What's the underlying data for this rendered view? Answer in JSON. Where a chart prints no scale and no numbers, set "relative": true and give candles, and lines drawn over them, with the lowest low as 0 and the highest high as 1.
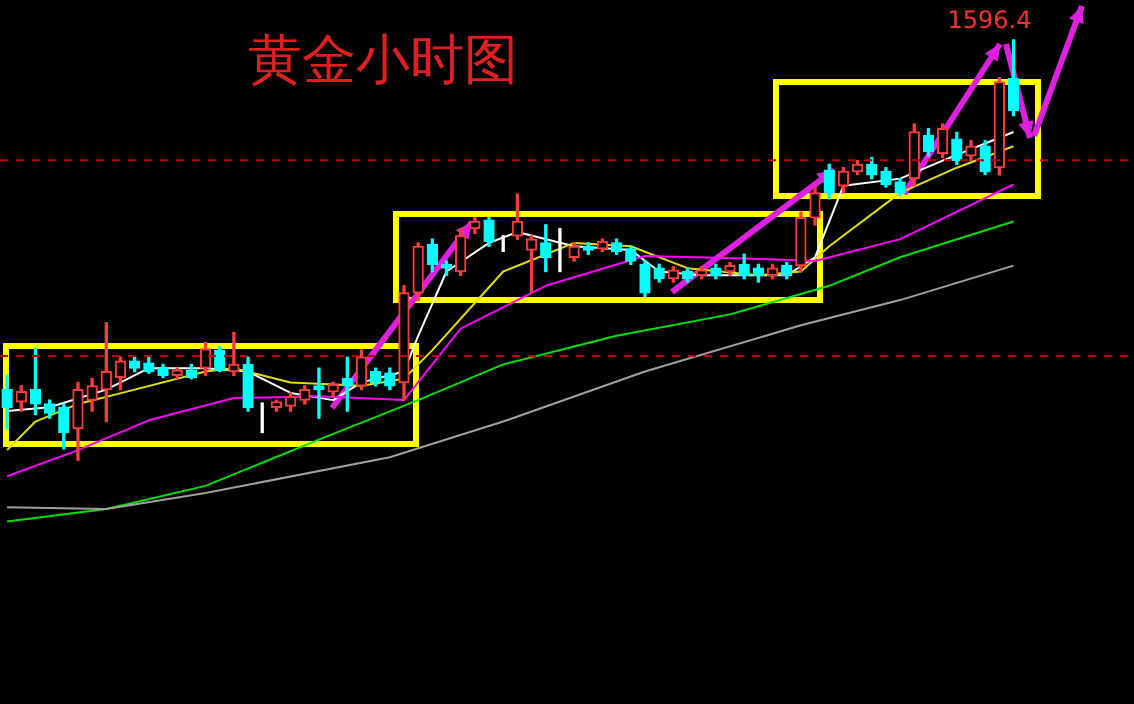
{
  "chart_data": {
    "type": "candlestick",
    "title": "黄金小时图",
    "relative": true,
    "categories": [
      null,
      null,
      null,
      null,
      null,
      null,
      null,
      null,
      null,
      null,
      null,
      null,
      null,
      null,
      null,
      null,
      null,
      null,
      null,
      null,
      null,
      null,
      null,
      null,
      null,
      null,
      null,
      null,
      null,
      null,
      null,
      null,
      null,
      null,
      null,
      null,
      null,
      null,
      null,
      null,
      null,
      null,
      null,
      null,
      null,
      null,
      null,
      null,
      null,
      null,
      null,
      null,
      null,
      null,
      null,
      null,
      null,
      null,
      null,
      null,
      null,
      null,
      null,
      null,
      null,
      null,
      null,
      null,
      null,
      null,
      null,
      null,
      null,
      null,
      null,
      null,
      null,
      null,
      null,
      null
    ],
    "ohlc": [
      [
        0.168,
        0.202,
        0.075,
        0.126
      ],
      [
        0.139,
        0.177,
        0.117,
        0.163
      ],
      [
        0.168,
        0.265,
        0.109,
        0.134
      ],
      [
        0.134,
        0.143,
        0.1,
        0.112
      ],
      [
        0.126,
        0.134,
        0.027,
        0.066
      ],
      [
        0.075,
        0.185,
        0,
        0.168
      ],
      [
        0.143,
        0.194,
        0.117,
        0.177
      ],
      [
        0.168,
        0.327,
        0.092,
        0.211
      ],
      [
        0.197,
        0.245,
        0.168,
        0.236
      ],
      [
        0.236,
        0.245,
        0.211,
        0.219
      ],
      [
        0.231,
        0.245,
        0.207,
        0.211
      ],
      [
        0.219,
        0.228,
        0.197,
        0.202
      ],
      [
        0.202,
        0.219,
        0.194,
        0.214
      ],
      [
        0.214,
        0.228,
        0.194,
        0.197
      ],
      [
        0.219,
        0.28,
        0.202,
        0.265
      ],
      [
        0.262,
        0.27,
        0.211,
        0.214
      ],
      [
        0.211,
        0.304,
        0.202,
        0.228
      ],
      [
        0.228,
        0.245,
        0.117,
        0.126
      ],
      [
        0.134,
        0.136,
        0.066,
        0.134
      ],
      [
        0.126,
        0.143,
        0.117,
        0.139
      ],
      [
        0.129,
        0.16,
        0.117,
        0.151
      ],
      [
        0.143,
        0.177,
        0.134,
        0.168
      ],
      [
        0.177,
        0.219,
        0.1,
        0.168
      ],
      [
        0.163,
        0.185,
        0.151,
        0.18
      ],
      [
        0.194,
        0.245,
        0.117,
        0.177
      ],
      [
        0.177,
        0.262,
        0.168,
        0.245
      ],
      [
        0.211,
        0.219,
        0.177,
        0.185
      ],
      [
        0.207,
        0.219,
        0.168,
        0.177
      ],
      [
        0.185,
        0.415,
        0.143,
        0.398
      ],
      [
        0.398,
        0.517,
        0.38,
        0.509
      ],
      [
        0.513,
        0.526,
        0.449,
        0.466
      ],
      [
        0.466,
        0.474,
        0.44,
        0.457
      ],
      [
        0.449,
        0.551,
        0.44,
        0.534
      ],
      [
        0.551,
        0.577,
        0.54,
        0.568
      ],
      [
        0.571,
        0.577,
        0.509,
        0.52
      ],
      [
        0.517,
        0.534,
        0.497,
        0.517
      ],
      [
        0.534,
        0.633,
        0.526,
        0.568
      ],
      [
        0.5,
        0.534,
        0.398,
        0.526
      ],
      [
        0.517,
        0.56,
        0.449,
        0.483
      ],
      [
        0.5,
        0.551,
        0.449,
        0.5
      ],
      [
        0.483,
        0.517,
        0.474,
        0.509
      ],
      [
        0.509,
        0.517,
        0.49,
        0.5
      ],
      [
        0.503,
        0.526,
        0.497,
        0.52
      ],
      [
        0.517,
        0.526,
        0.49,
        0.497
      ],
      [
        0.503,
        0.509,
        0.466,
        0.474
      ],
      [
        0.466,
        0.474,
        0.39,
        0.398
      ],
      [
        0.457,
        0.466,
        0.424,
        0.432
      ],
      [
        0.432,
        0.46,
        0.424,
        0.452
      ],
      [
        0.449,
        0.457,
        0.424,
        0.432
      ],
      [
        0.44,
        0.46,
        0.432,
        0.452
      ],
      [
        0.457,
        0.466,
        0.432,
        0.44
      ],
      [
        0.449,
        0.47,
        0.44,
        0.463
      ],
      [
        0.466,
        0.49,
        0.432,
        0.44
      ],
      [
        0.457,
        0.466,
        0.424,
        0.44
      ],
      [
        0.44,
        0.466,
        0.432,
        0.457
      ],
      [
        0.463,
        0.47,
        0.432,
        0.44
      ],
      [
        0.463,
        0.59,
        0.449,
        0.577
      ],
      [
        0.577,
        0.65,
        0.56,
        0.636
      ],
      [
        0.69,
        0.704,
        0.622,
        0.636
      ],
      [
        0.653,
        0.696,
        0.636,
        0.687
      ],
      [
        0.687,
        0.713,
        0.68,
        0.704
      ],
      [
        0.704,
        0.72,
        0.67,
        0.679
      ],
      [
        0.687,
        0.696,
        0.65,
        0.656
      ],
      [
        0.662,
        0.67,
        0.63,
        0.636
      ],
      [
        0.67,
        0.8,
        0.653,
        0.781
      ],
      [
        0.772,
        0.789,
        0.724,
        0.735
      ],
      [
        0.73,
        0.8,
        0.72,
        0.789
      ],
      [
        0.764,
        0.78,
        0.704,
        0.713
      ],
      [
        0.724,
        0.76,
        0.713,
        0.747
      ],
      [
        0.747,
        0.76,
        0.68,
        0.687
      ],
      [
        0.696,
        0.91,
        0.679,
        0.9
      ],
      [
        0.908,
        1,
        0.82,
        0.832
      ],
      null,
      null,
      null,
      null,
      null,
      null,
      null,
      null
    ],
    "colors": [
      "#00ffff",
      "#ff3c3c",
      "#00ffff",
      "#00ffff",
      "#00ffff",
      "#ff3c3c",
      "#ff3c3c",
      "#ff3c3c",
      "#ff3c3c",
      "#00ffff",
      "#00ffff",
      "#00ffff",
      "#ff3c3c",
      "#00ffff",
      "#ff3c3c",
      "#00ffff",
      "#ff3c3c",
      "#00ffff",
      "#ffffff",
      "#ff3c3c",
      "#ff3c3c",
      "#ff3c3c",
      "#00ffff",
      "#ff3c3c",
      "#00ffff",
      "#ff3c3c",
      "#00ffff",
      "#00ffff",
      "#ff3c3c",
      "#ff3c3c",
      "#00ffff",
      "#00ffff",
      "#ff3c3c",
      "#ff3c3c",
      "#00ffff",
      "#ffffff",
      "#ff3c3c",
      "#ff3c3c",
      "#00ffff",
      "#ffffff",
      "#ff3c3c",
      "#00ffff",
      "#ff3c3c",
      "#00ffff",
      "#00ffff",
      "#00ffff",
      "#00ffff",
      "#ff3c3c",
      "#00ffff",
      "#ff3c3c",
      "#00ffff",
      "#ff3c3c",
      "#00ffff",
      "#00ffff",
      "#ff3c3c",
      "#00ffff",
      "#ff3c3c",
      "#ff3c3c",
      "#00ffff",
      "#ff3c3c",
      "#ff3c3c",
      "#00ffff",
      "#00ffff",
      "#00ffff",
      "#ff3c3c",
      "#00ffff",
      "#ff3c3c",
      "#00ffff",
      "#ff3c3c",
      "#00ffff",
      "#ff3c3c",
      "#00ffff",
      null,
      null,
      null,
      null,
      null,
      null,
      null,
      null
    ],
    "series": [
      {
        "type": "line",
        "color": "#a0a0a0",
        "values": [
          -0.112,
          null,
          null,
          null,
          null,
          null,
          null,
          -0.116,
          null,
          null,
          null,
          null,
          null,
          null,
          -0.078,
          null,
          null,
          null,
          null,
          null,
          null,
          null,
          null,
          null,
          null,
          null,
          null,
          0.007,
          null,
          null,
          null,
          null,
          null,
          null,
          null,
          0.092,
          null,
          null,
          null,
          null,
          null,
          null,
          null,
          null,
          null,
          0.211,
          null,
          null,
          null,
          null,
          null,
          null,
          null,
          null,
          null,
          null,
          0.321,
          null,
          null,
          null,
          null,
          null,
          null,
          0.381,
          null,
          null,
          null,
          null,
          null,
          null,
          null,
          0.463,
          null,
          null,
          null,
          null,
          null,
          null,
          null,
          null
        ]
      },
      {
        "type": "line",
        "color": "#00e000",
        "values": [
          -0.146,
          null,
          null,
          null,
          null,
          null,
          null,
          -0.116,
          null,
          null,
          null,
          null,
          null,
          null,
          -0.061,
          null,
          null,
          null,
          null,
          null,
          null,
          null,
          0.049,
          null,
          null,
          null,
          null,
          null,
          null,
          0.143,
          null,
          null,
          null,
          null,
          null,
          0.228,
          null,
          null,
          null,
          null,
          null,
          null,
          null,
          0.296,
          null,
          null,
          null,
          null,
          null,
          null,
          null,
          0.347,
          null,
          null,
          null,
          null,
          null,
          null,
          0.415,
          null,
          null,
          null,
          null,
          0.483,
          null,
          null,
          null,
          null,
          null,
          null,
          null,
          0.568,
          null,
          null,
          null,
          null,
          null,
          null,
          null,
          null
        ]
      },
      {
        "type": "line",
        "color": "#ff00ff",
        "values": [
          -0.038,
          null,
          null,
          null,
          null,
          0.024,
          null,
          null,
          null,
          null,
          0.095,
          null,
          null,
          null,
          null,
          null,
          0.148,
          null,
          null,
          null,
          null,
          null,
          0.152,
          null,
          null,
          null,
          null,
          null,
          0.143,
          null,
          null,
          null,
          0.313,
          null,
          null,
          null,
          null,
          null,
          0.415,
          null,
          null,
          null,
          null,
          null,
          null,
          0.486,
          null,
          null,
          null,
          null,
          null,
          null,
          0.48,
          null,
          null,
          null,
          null,
          0.474,
          null,
          null,
          null,
          null,
          null,
          0.526,
          null,
          null,
          null,
          null,
          null,
          null,
          null,
          0.656,
          null,
          null,
          null,
          null,
          null,
          null,
          null,
          null
        ]
      },
      {
        "type": "line",
        "color": "#e0e000",
        "values": [
          0.024,
          null,
          0.092,
          null,
          null,
          0.134,
          null,
          null,
          null,
          0.168,
          null,
          null,
          null,
          null,
          0.211,
          null,
          0.219,
          null,
          null,
          null,
          0.185,
          null,
          null,
          null,
          null,
          0.177,
          null,
          null,
          0.194,
          null,
          0.262,
          null,
          null,
          null,
          null,
          0.449,
          null,
          null,
          null,
          null,
          0.517,
          null,
          null,
          null,
          0.509,
          null,
          null,
          null,
          0.457,
          null,
          null,
          null,
          null,
          0.44,
          null,
          null,
          0.449,
          null,
          0.509,
          null,
          null,
          null,
          null,
          0.636,
          null,
          null,
          null,
          0.696,
          null,
          null,
          null,
          0.747,
          null,
          null,
          null,
          null,
          null,
          null,
          null,
          null
        ]
      },
      {
        "type": "line",
        "color": "#ffffff",
        "values": [
          0.117,
          null,
          null,
          0.126,
          null,
          null,
          null,
          0.168,
          null,
          null,
          0.219,
          null,
          null,
          null,
          0.219,
          null,
          null,
          0.211,
          null,
          null,
          0.16,
          null,
          null,
          0.143,
          null,
          0.185,
          null,
          null,
          0.211,
          0.296,
          null,
          0.449,
          null,
          null,
          0.517,
          null,
          0.543,
          null,
          null,
          null,
          0.509,
          null,
          null,
          null,
          0.5,
          null,
          0.449,
          null,
          null,
          0.44,
          null,
          null,
          null,
          null,
          null,
          0.44,
          null,
          0.483,
          null,
          0.653,
          null,
          null,
          null,
          0.67,
          null,
          null,
          0.713,
          null,
          null,
          null,
          null,
          0.781,
          null,
          null,
          null,
          null,
          null,
          null,
          null,
          null
        ]
      }
    ],
    "ref_lines": [
      {
        "axis": "y",
        "value": 0.714,
        "color": "#c00000",
        "line_style": "dashed"
      },
      {
        "axis": "y",
        "value": 0.248,
        "color": "#c00000",
        "line_style": "dashed"
      }
    ],
    "annotations": [
      "1596.4"
    ]
  }
}
